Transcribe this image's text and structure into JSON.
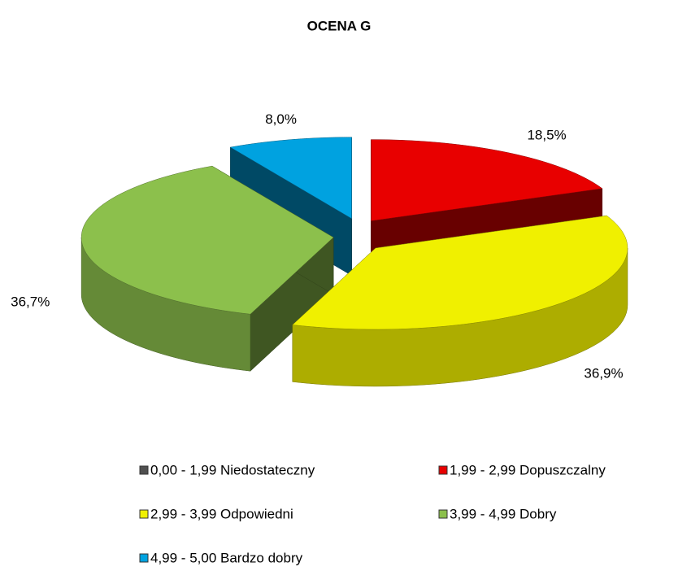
{
  "chart_data": {
    "type": "pie",
    "title": "OCENA G",
    "categories": [
      "0,00 - 1,99 Niedostateczny",
      "1,99 - 2,99 Dopuszczalny",
      "2,99 - 3,99 Odpowiedni",
      "3,99 - 4,99 Dobry",
      "4,99 - 5,00 Bardzo dobry"
    ],
    "values": [
      0,
      18.5,
      36.9,
      36.7,
      8.0
    ],
    "value_labels": [
      null,
      "18,5%",
      "36,9%",
      "36,7%",
      "8,0%"
    ],
    "colors": [
      "#505050",
      "#e80000",
      "#f0f000",
      "#8cc04c",
      "#00a2e0"
    ]
  }
}
